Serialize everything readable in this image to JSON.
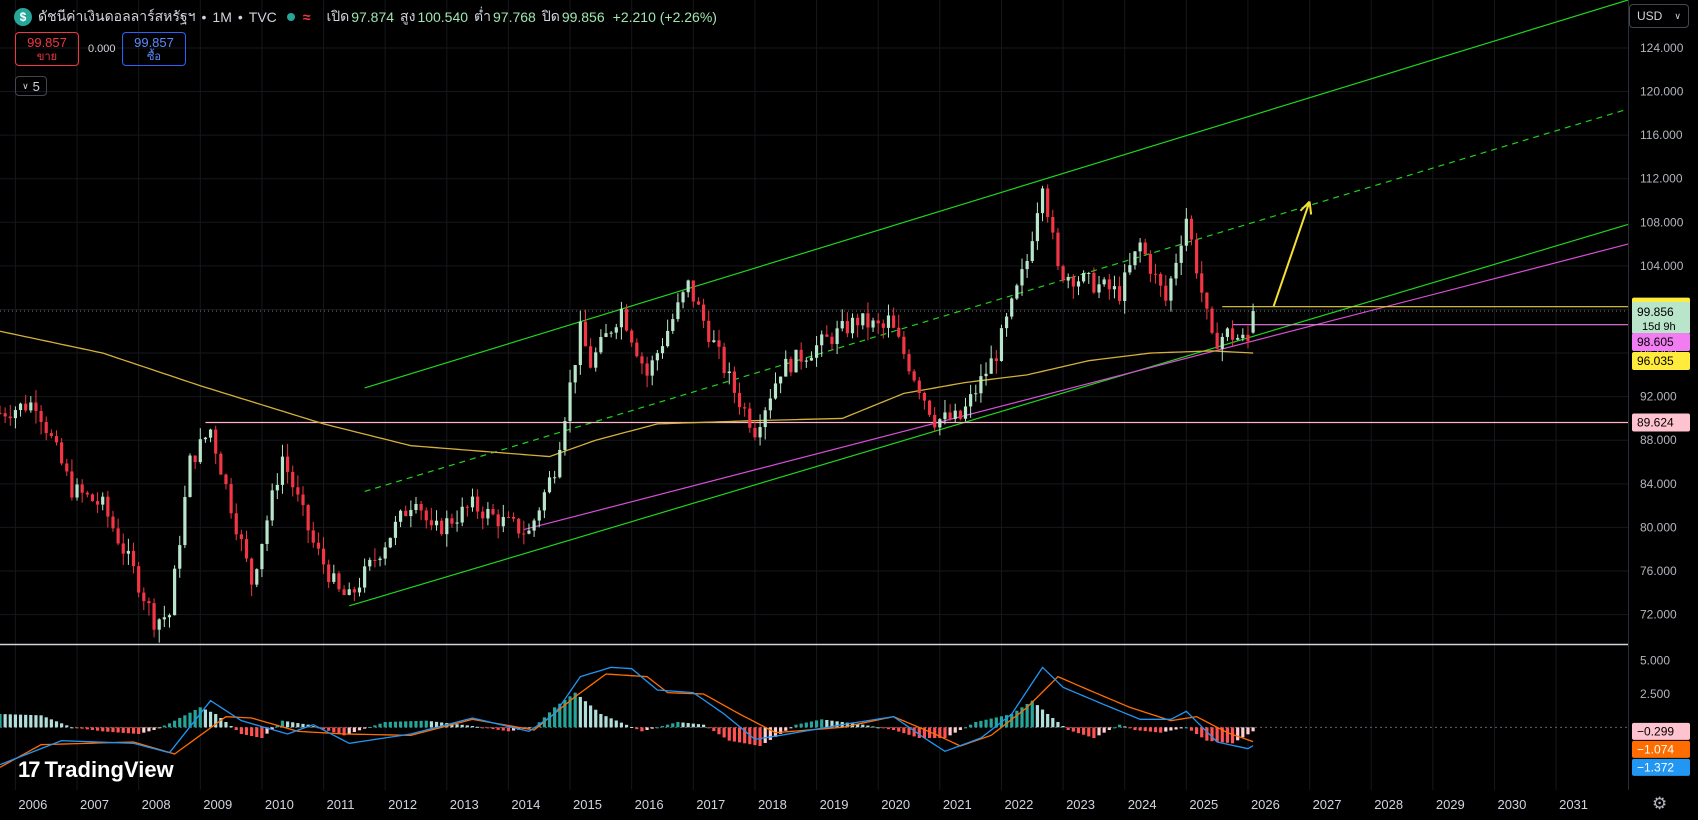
{
  "header": {
    "coin_icon": "$",
    "symbol": "ดัชนีค่าเงินดอลลาร์สหรัฐฯ",
    "interval": "1M",
    "exchange": "TVC",
    "sep": "•",
    "wave_icon": "≈",
    "open_label": "เปิด",
    "open": "97.874",
    "high_label": "สูง",
    "high": "100.540",
    "low_label": "ต่ำ",
    "low": "97.768",
    "close_label": "ปิด",
    "close": "99.856",
    "change": "+2.210 (+2.26%)"
  },
  "trade": {
    "sell_price": "99.857",
    "sell_label": "ขาย",
    "spread": "0.000",
    "buy_price": "99.857",
    "buy_label": "ซื้อ"
  },
  "indicators_collapse": {
    "icon": "chevron-down-icon",
    "count": "5"
  },
  "currency": {
    "label": "USD",
    "icon": "chevron-down-icon"
  },
  "branding": {
    "logo_mark": "17",
    "logo_text": "TradingView"
  },
  "settings_icon": "⚙",
  "colors": {
    "up": "#b9e6cb",
    "down": "#f23645",
    "channel": "#1fd41f",
    "pink": "#d64fd6",
    "ma": "#d4b03a",
    "hline_yellow": "#e8cd42",
    "hline_pink": "#ffb3c6",
    "arrow": "#f5e033",
    "macd": "#2196f3",
    "signal": "#ff6d00"
  },
  "chart_data": [
    {
      "type": "candlestick",
      "interval": "1M",
      "x_range": [
        "2005-10",
        "2032-03"
      ],
      "x_ticks": [
        "2006",
        "2007",
        "2008",
        "2009",
        "2010",
        "2011",
        "2012",
        "2013",
        "2014",
        "2015",
        "2016",
        "2017",
        "2018",
        "2019",
        "2020",
        "2021",
        "2022",
        "2023",
        "2024",
        "2025",
        "2026",
        "2027",
        "2028",
        "2029",
        "2030",
        "2031"
      ],
      "ylim": [
        69.3,
        128.4
      ],
      "y_ticks": [
        "72.000",
        "76.000",
        "80.000",
        "84.000",
        "88.000",
        "92.000",
        "96.000",
        "100.000",
        "104.000",
        "108.000",
        "112.000",
        "116.000",
        "120.000",
        "124.000"
      ],
      "price_labels": [
        {
          "value": 100.257,
          "text": "100.257",
          "bg": "#ffeb3b",
          "fg": "#000000"
        },
        {
          "value": 99.856,
          "text": "99.856",
          "bg": "#b9e6cb",
          "fg": "#000000",
          "sub": "15d 9h"
        },
        {
          "value": 98.605,
          "text": "98.605",
          "bg": "#f27cf2",
          "fg": "#000000"
        },
        {
          "value": 96.035,
          "text": "96.035",
          "bg": "#ffeb3b",
          "fg": "#000000"
        },
        {
          "value": 89.624,
          "text": "89.624",
          "bg": "#ffc2cf",
          "fg": "#000000"
        }
      ],
      "anchors": [
        [
          "2005-10",
          90.5
        ],
        [
          "2006-05",
          91.5
        ],
        [
          "2006-12",
          83.5
        ],
        [
          "2007-06",
          82.0
        ],
        [
          "2007-12",
          76.0
        ],
        [
          "2008-04",
          71.5
        ],
        [
          "2008-07",
          72.0
        ],
        [
          "2008-11",
          86.0
        ],
        [
          "2009-03",
          89.0
        ],
        [
          "2009-11",
          75.0
        ],
        [
          "2010-05",
          86.5
        ],
        [
          "2010-11",
          78.5
        ],
        [
          "2011-04",
          74.0
        ],
        [
          "2011-06",
          73.5
        ],
        [
          "2012-07",
          83.0
        ],
        [
          "2012-10",
          79.5
        ],
        [
          "2013-06",
          82.0
        ],
        [
          "2013-12",
          80.5
        ],
        [
          "2014-05",
          79.5
        ],
        [
          "2014-10",
          85.5
        ],
        [
          "2015-03",
          98.0
        ],
        [
          "2015-05",
          95.0
        ],
        [
          "2015-11",
          100.0
        ],
        [
          "2016-04",
          94.0
        ],
        [
          "2016-12",
          102.2
        ],
        [
          "2017-09",
          92.5
        ],
        [
          "2018-01",
          89.0
        ],
        [
          "2018-06",
          94.5
        ],
        [
          "2019-09",
          99.0
        ],
        [
          "2020-02",
          98.2
        ],
        [
          "2020-03",
          99.0
        ],
        [
          "2020-12",
          89.9
        ],
        [
          "2021-05",
          90.0
        ],
        [
          "2021-12",
          96.0
        ],
        [
          "2022-06",
          104.5
        ],
        [
          "2022-09",
          112.0
        ],
        [
          "2022-12",
          103.5
        ],
        [
          "2023-06",
          102.5
        ],
        [
          "2023-12",
          101.5
        ],
        [
          "2024-04",
          106.0
        ],
        [
          "2024-09",
          100.8
        ],
        [
          "2025-01",
          108.5
        ],
        [
          "2025-06",
          97.0
        ],
        [
          "2025-09",
          97.8
        ],
        [
          "2026-01",
          97.0
        ],
        [
          "2026-02",
          99.856
        ]
      ],
      "moving_average": [
        [
          "2005-10",
          98.0
        ],
        [
          "2007-06",
          96.0
        ],
        [
          "2009-01",
          93.0
        ],
        [
          "2011-01",
          89.5
        ],
        [
          "2012-06",
          87.5
        ],
        [
          "2014-09",
          86.5
        ],
        [
          "2015-06",
          88.0
        ],
        [
          "2016-06",
          89.5
        ],
        [
          "2018-01",
          89.8
        ],
        [
          "2019-06",
          90.0
        ],
        [
          "2020-06",
          92.3
        ],
        [
          "2021-06",
          93.3
        ],
        [
          "2022-06",
          94.0
        ],
        [
          "2023-06",
          95.3
        ],
        [
          "2024-06",
          96.0
        ],
        [
          "2025-06",
          96.2
        ],
        [
          "2026-02",
          96.0
        ]
      ],
      "lines": [
        {
          "kind": "channel-upper",
          "from": [
            "2011-09",
            92.8
          ],
          "to": [
            "2032-03",
            128.4
          ]
        },
        {
          "kind": "channel-mid-dashed",
          "from": [
            "2011-09",
            83.3
          ],
          "to": [
            "2032-03",
            118.4
          ]
        },
        {
          "kind": "channel-lower",
          "from": [
            "2011-06",
            72.8
          ],
          "to": [
            "2032-03",
            107.8
          ]
        },
        {
          "kind": "pink-trend",
          "from": [
            "2014-04",
            79.8
          ],
          "to": [
            "2032-03",
            106.0
          ]
        },
        {
          "kind": "hline-pink",
          "from": [
            "2009-02",
            89.624
          ],
          "to": [
            "2032-03",
            89.624
          ]
        },
        {
          "kind": "hline-yellow",
          "from": [
            "2025-08",
            100.257
          ],
          "to": [
            "2032-03",
            100.257
          ]
        },
        {
          "kind": "hline-magenta",
          "from": [
            "2025-10",
            98.605
          ],
          "to": [
            "2032-03",
            98.605
          ]
        },
        {
          "kind": "arrow",
          "from": [
            "2026-06",
            100.3
          ],
          "to": [
            "2027-01",
            109.9
          ]
        }
      ]
    },
    {
      "type": "macd",
      "ylim": [
        -4.7,
        6.1
      ],
      "y_ticks": [
        "5.000",
        "2.500"
      ],
      "values": [
        {
          "value": -0.299,
          "text": "−0.299",
          "bg": "#ffc2cf",
          "fg": "#000000"
        },
        {
          "value": -1.074,
          "text": "−1.074",
          "bg": "#ff6d00",
          "fg": "#ffffff"
        },
        {
          "value": -1.372,
          "text": "−1.372",
          "bg": "#2196f3",
          "fg": "#ffffff"
        }
      ],
      "histogram_anchors": [
        [
          "2005-10",
          1.0
        ],
        [
          "2006-06",
          0.9
        ],
        [
          "2006-12",
          0.0
        ],
        [
          "2007-06",
          -0.3
        ],
        [
          "2008-01",
          -0.5
        ],
        [
          "2008-04",
          -0.2
        ],
        [
          "2008-07",
          0.3
        ],
        [
          "2009-01",
          1.5
        ],
        [
          "2009-04",
          1.0
        ],
        [
          "2009-09",
          -0.5
        ],
        [
          "2010-01",
          -0.8
        ],
        [
          "2010-05",
          0.5
        ],
        [
          "2010-10",
          0.2
        ],
        [
          "2011-05",
          -0.6
        ],
        [
          "2012-01",
          0.4
        ],
        [
          "2012-09",
          0.5
        ],
        [
          "2013-06",
          0.1
        ],
        [
          "2014-01",
          -0.3
        ],
        [
          "2014-06",
          0.0
        ],
        [
          "2014-10",
          1.5
        ],
        [
          "2015-02",
          2.6
        ],
        [
          "2015-07",
          1.0
        ],
        [
          "2016-03",
          -0.3
        ],
        [
          "2016-10",
          0.4
        ],
        [
          "2017-03",
          0.2
        ],
        [
          "2017-08",
          -1.0
        ],
        [
          "2018-02",
          -1.4
        ],
        [
          "2018-09",
          0.2
        ],
        [
          "2019-02",
          0.6
        ],
        [
          "2019-10",
          0.2
        ],
        [
          "2020-04",
          -0.2
        ],
        [
          "2020-09",
          -0.8
        ],
        [
          "2021-02",
          -0.8
        ],
        [
          "2021-08",
          0.4
        ],
        [
          "2022-03",
          1.0
        ],
        [
          "2022-07",
          2.0
        ],
        [
          "2022-10",
          1.0
        ],
        [
          "2023-02",
          -0.2
        ],
        [
          "2023-07",
          -0.8
        ],
        [
          "2023-12",
          0.2
        ],
        [
          "2024-03",
          -0.2
        ],
        [
          "2024-08",
          -0.4
        ],
        [
          "2025-01",
          0.0
        ],
        [
          "2025-05",
          -1.0
        ],
        [
          "2025-10",
          -1.2
        ],
        [
          "2026-02",
          -0.299
        ]
      ],
      "macd_anchors": [
        [
          "2005-10",
          -2.8
        ],
        [
          "2006-10",
          -1.0
        ],
        [
          "2007-12",
          -1.2
        ],
        [
          "2008-07",
          -1.9
        ],
        [
          "2009-03",
          2.0
        ],
        [
          "2009-09",
          0.5
        ],
        [
          "2010-06",
          -0.5
        ],
        [
          "2010-11",
          0.2
        ],
        [
          "2011-06",
          -1.2
        ],
        [
          "2012-06",
          -0.5
        ],
        [
          "2013-06",
          0.7
        ],
        [
          "2014-05",
          -0.3
        ],
        [
          "2014-10",
          1.0
        ],
        [
          "2015-03",
          3.8
        ],
        [
          "2015-09",
          4.5
        ],
        [
          "2016-01",
          4.4
        ],
        [
          "2016-06",
          2.8
        ],
        [
          "2017-01",
          2.6
        ],
        [
          "2017-07",
          1.0
        ],
        [
          "2018-01",
          -0.9
        ],
        [
          "2018-06",
          -0.6
        ],
        [
          "2019-06",
          0.2
        ],
        [
          "2020-04",
          0.8
        ],
        [
          "2020-10",
          -0.8
        ],
        [
          "2021-02",
          -1.8
        ],
        [
          "2021-09",
          -0.8
        ],
        [
          "2022-03",
          1.0
        ],
        [
          "2022-09",
          4.5
        ],
        [
          "2023-01",
          3.0
        ],
        [
          "2023-09",
          1.7
        ],
        [
          "2024-04",
          0.6
        ],
        [
          "2024-10",
          0.6
        ],
        [
          "2025-01",
          1.2
        ],
        [
          "2025-07",
          -1.1
        ],
        [
          "2026-01",
          -1.6
        ],
        [
          "2026-02",
          -1.372
        ]
      ],
      "signal_anchors": [
        [
          "2005-10",
          -3.0
        ],
        [
          "2006-06",
          -1.3
        ],
        [
          "2007-12",
          -1.1
        ],
        [
          "2008-08",
          -2.0
        ],
        [
          "2009-06",
          0.8
        ],
        [
          "2009-11",
          0.7
        ],
        [
          "2010-08",
          -0.3
        ],
        [
          "2011-05",
          -0.5
        ],
        [
          "2012-06",
          -0.6
        ],
        [
          "2013-06",
          0.6
        ],
        [
          "2014-06",
          -0.2
        ],
        [
          "2015-02",
          2.3
        ],
        [
          "2015-08",
          4.0
        ],
        [
          "2016-04",
          3.8
        ],
        [
          "2016-08",
          2.6
        ],
        [
          "2017-03",
          2.5
        ],
        [
          "2017-10",
          1.0
        ],
        [
          "2018-05",
          -0.4
        ],
        [
          "2019-06",
          0.0
        ],
        [
          "2020-04",
          0.8
        ],
        [
          "2020-12",
          -0.5
        ],
        [
          "2021-05",
          -1.4
        ],
        [
          "2021-11",
          -0.6
        ],
        [
          "2022-06",
          1.5
        ],
        [
          "2022-12",
          3.8
        ],
        [
          "2023-06",
          2.8
        ],
        [
          "2024-02",
          1.5
        ],
        [
          "2024-10",
          0.5
        ],
        [
          "2025-03",
          0.8
        ],
        [
          "2025-09",
          -0.4
        ],
        [
          "2026-02",
          -1.074
        ]
      ]
    }
  ]
}
